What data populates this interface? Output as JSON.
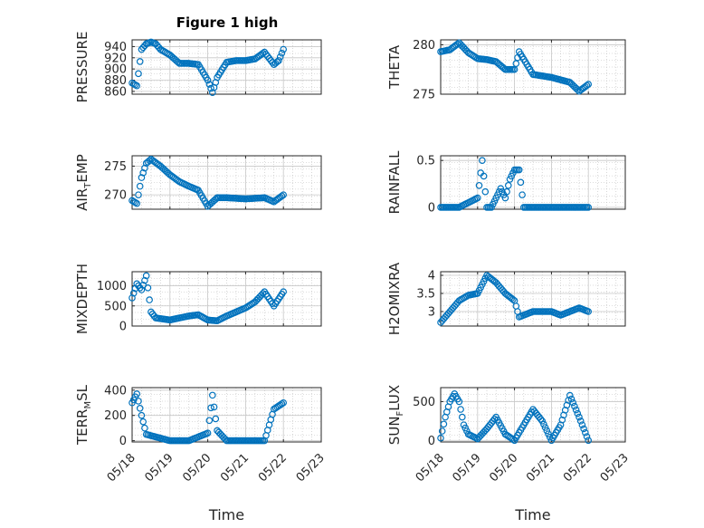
{
  "figure": {
    "title": "Figure 1 high",
    "colors": {
      "marker": "#0072BD",
      "axis": "#262626",
      "grid": "#c8c8c8",
      "minor_grid": "#bdbdbd"
    }
  },
  "chart_data": [
    {
      "type": "scatter",
      "id": "pressure",
      "title": "Figure 1 high",
      "ylabel": "PRESSURE",
      "xlabel": "",
      "xlim": [
        "05/18",
        "05/23"
      ],
      "ylim": [
        855,
        952
      ],
      "yticks": [
        860,
        880,
        900,
        920,
        940
      ],
      "x_tick_labels_shown": false,
      "grid": true,
      "x": [
        "05/18 00:00",
        "05/18 03:00",
        "05/18 06:00",
        "05/18 09:00",
        "05/18 12:00",
        "05/18 15:00",
        "05/18 18:00",
        "05/19 00:00",
        "05/19 06:00",
        "05/19 12:00",
        "05/19 18:00",
        "05/20 00:00",
        "05/20 03:00",
        "05/20 06:00",
        "05/20 12:00",
        "05/20 18:00",
        "05/21 00:00",
        "05/21 06:00",
        "05/21 12:00",
        "05/21 18:00",
        "05/21 21:00",
        "05/22 00:00"
      ],
      "y": [
        875,
        870,
        935,
        945,
        948,
        945,
        935,
        925,
        910,
        910,
        908,
        880,
        858,
        885,
        912,
        915,
        915,
        918,
        930,
        908,
        915,
        935
      ]
    },
    {
      "type": "scatter",
      "id": "theta",
      "ylabel": "THETA",
      "xlabel": "",
      "xlim": [
        "05/18",
        "05/23"
      ],
      "ylim": [
        275,
        280.5
      ],
      "yticks": [
        275,
        280
      ],
      "x_tick_labels_shown": false,
      "grid": true,
      "x": [
        "05/18 00:00",
        "05/18 06:00",
        "05/18 12:00",
        "05/18 18:00",
        "05/19 00:00",
        "05/19 06:00",
        "05/19 12:00",
        "05/19 18:00",
        "05/20 00:00",
        "05/20 03:00",
        "05/20 12:00",
        "05/21 00:00",
        "05/21 12:00",
        "05/21 18:00",
        "05/22 00:00"
      ],
      "y": [
        279.3,
        279.5,
        280.2,
        279.2,
        278.6,
        278.5,
        278.3,
        277.5,
        277.5,
        279.3,
        277.0,
        276.7,
        276.2,
        275.3,
        276.0
      ]
    },
    {
      "type": "scatter",
      "id": "air-temp",
      "ylabel": "AIR_TEMP",
      "ylabel_main": "AIR",
      "ylabel_sub": "T",
      "ylabel_rest": "EMP",
      "xlabel": "",
      "xlim": [
        "05/18",
        "05/23"
      ],
      "ylim": [
        267.5,
        276.8
      ],
      "yticks": [
        270,
        275
      ],
      "x_tick_labels_shown": false,
      "grid": true,
      "x": [
        "05/18 00:00",
        "05/18 03:00",
        "05/18 06:00",
        "05/18 09:00",
        "05/18 12:00",
        "05/18 18:00",
        "05/19 00:00",
        "05/19 06:00",
        "05/19 12:00",
        "05/19 18:00",
        "05/20 00:00",
        "05/20 06:00",
        "05/20 12:00",
        "05/21 00:00",
        "05/21 12:00",
        "05/21 18:00",
        "05/22 00:00"
      ],
      "y": [
        269.0,
        268.5,
        273.0,
        275.5,
        276.2,
        275.0,
        273.5,
        272.3,
        271.5,
        270.8,
        268.0,
        269.5,
        269.5,
        269.3,
        269.5,
        268.8,
        270.0
      ]
    },
    {
      "type": "scatter",
      "id": "rainfall",
      "ylabel": "RAINFALL",
      "xlabel": "",
      "xlim": [
        "05/18",
        "05/23"
      ],
      "ylim": [
        -0.02,
        0.55
      ],
      "yticks": [
        0,
        0.5
      ],
      "x_tick_labels_shown": false,
      "grid": true,
      "x": [
        "05/18 00:00",
        "05/18 12:00",
        "05/19 00:00",
        "05/19 03:00",
        "05/19 06:00",
        "05/19 09:00",
        "05/19 15:00",
        "05/19 18:00",
        "05/19 21:00",
        "05/20 00:00",
        "05/20 03:00",
        "05/20 06:00",
        "05/20 12:00",
        "05/21 00:00",
        "05/21 12:00",
        "05/22 00:00"
      ],
      "y": [
        0,
        0,
        0.1,
        0.5,
        0,
        0,
        0.2,
        0.1,
        0.3,
        0.4,
        0.4,
        0,
        0,
        0,
        0,
        0
      ]
    },
    {
      "type": "scatter",
      "id": "mixdepth",
      "ylabel": "MIXDEPTH",
      "xlabel": "",
      "xlim": [
        "05/18",
        "05/23"
      ],
      "ylim": [
        0,
        1350
      ],
      "yticks": [
        0,
        500,
        1000
      ],
      "x_tick_labels_shown": false,
      "grid": true,
      "x": [
        "05/18 00:00",
        "05/18 03:00",
        "05/18 06:00",
        "05/18 09:00",
        "05/18 12:00",
        "05/18 15:00",
        "05/19 00:00",
        "05/19 06:00",
        "05/19 12:00",
        "05/19 18:00",
        "05/20 00:00",
        "05/20 06:00",
        "05/20 12:00",
        "05/21 00:00",
        "05/21 06:00",
        "05/21 12:00",
        "05/21 18:00",
        "05/22 00:00"
      ],
      "y": [
        700,
        1050,
        900,
        1250,
        350,
        200,
        150,
        200,
        250,
        280,
        150,
        130,
        250,
        450,
        600,
        850,
        500,
        850
      ]
    },
    {
      "type": "scatter",
      "id": "h2omixra",
      "ylabel": "H2OMIXRA",
      "xlabel": "",
      "xlim": [
        "05/18",
        "05/23"
      ],
      "ylim": [
        2.6,
        4.1
      ],
      "yticks": [
        3,
        3.5,
        4
      ],
      "x_tick_labels_shown": false,
      "grid": true,
      "x": [
        "05/18 00:00",
        "05/18 06:00",
        "05/18 12:00",
        "05/18 18:00",
        "05/19 00:00",
        "05/19 06:00",
        "05/19 12:00",
        "05/19 18:00",
        "05/20 00:00",
        "05/20 03:00",
        "05/20 12:00",
        "05/21 00:00",
        "05/21 06:00",
        "05/21 12:00",
        "05/21 18:00",
        "05/22 00:00"
      ],
      "y": [
        2.7,
        3.0,
        3.3,
        3.45,
        3.5,
        4.0,
        3.8,
        3.5,
        3.3,
        2.85,
        3.0,
        3.0,
        2.9,
        3.0,
        3.1,
        3.0
      ]
    },
    {
      "type": "scatter",
      "id": "terr-msl",
      "ylabel": "TERR_MSL",
      "ylabel_main": "TERR",
      "ylabel_sub": "M",
      "ylabel_rest": "SL",
      "xlabel": "Time",
      "xlim": [
        "05/18",
        "05/23"
      ],
      "ylim": [
        -10,
        420
      ],
      "yticks": [
        0,
        200,
        400
      ],
      "x_tick_labels_shown": true,
      "grid": true,
      "x_tick_labels": [
        "05/18",
        "05/19",
        "05/20",
        "05/21",
        "05/22",
        "05/23"
      ],
      "x": [
        "05/18 00:00",
        "05/18 03:00",
        "05/18 06:00",
        "05/18 09:00",
        "05/18 12:00",
        "05/18 18:00",
        "05/19 00:00",
        "05/19 12:00",
        "05/20 00:00",
        "05/20 03:00",
        "05/20 06:00",
        "05/20 12:00",
        "05/21 00:00",
        "05/21 06:00",
        "05/21 12:00",
        "05/21 18:00",
        "05/22 00:00"
      ],
      "y": [
        300,
        370,
        200,
        50,
        40,
        20,
        0,
        0,
        60,
        360,
        80,
        0,
        0,
        0,
        0,
        250,
        300
      ]
    },
    {
      "type": "scatter",
      "id": "sun-flux",
      "ylabel": "SUN_FLUX",
      "ylabel_main": "SUN",
      "ylabel_sub": "F",
      "ylabel_rest": "LUX",
      "xlabel": "Time",
      "xlim": [
        "05/18",
        "05/23"
      ],
      "ylim": [
        -20,
        680
      ],
      "yticks": [
        0,
        500
      ],
      "x_tick_labels_shown": true,
      "grid": true,
      "x_tick_labels": [
        "05/18",
        "05/19",
        "05/20",
        "05/21",
        "05/22",
        "05/23"
      ],
      "x": [
        "05/18 00:00",
        "05/18 03:00",
        "05/18 06:00",
        "05/18 09:00",
        "05/18 12:00",
        "05/18 15:00",
        "05/18 18:00",
        "05/19 00:00",
        "05/19 06:00",
        "05/19 12:00",
        "05/19 18:00",
        "05/20 00:00",
        "05/20 06:00",
        "05/20 12:00",
        "05/20 18:00",
        "05/21 00:00",
        "05/21 06:00",
        "05/21 12:00",
        "05/21 18:00",
        "05/22 00:00"
      ],
      "y": [
        30,
        300,
        500,
        600,
        500,
        200,
        80,
        20,
        150,
        300,
        80,
        0,
        200,
        400,
        250,
        0,
        200,
        580,
        300,
        0
      ]
    }
  ]
}
